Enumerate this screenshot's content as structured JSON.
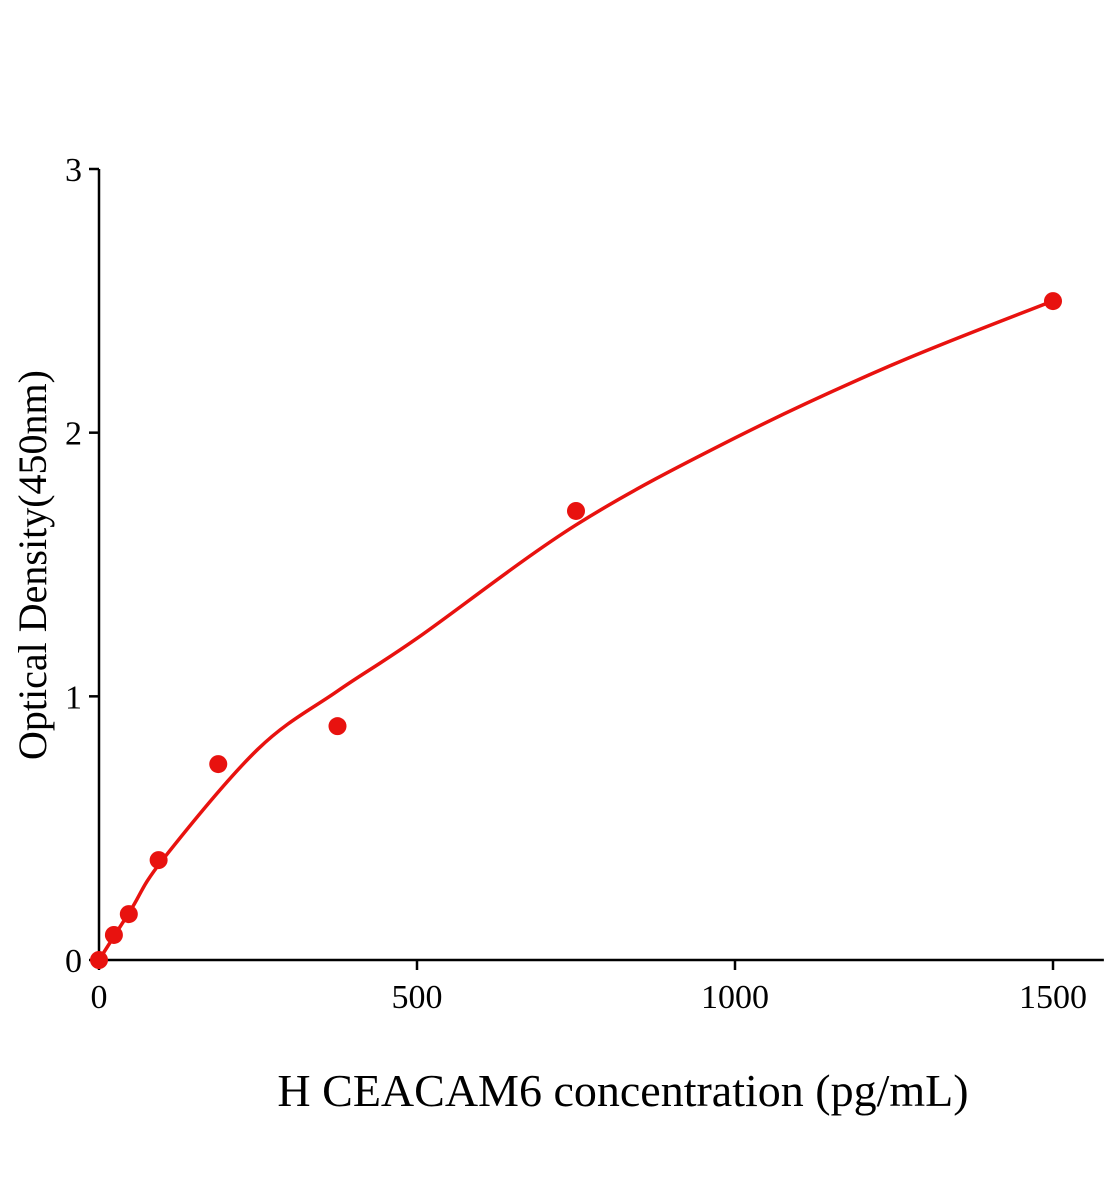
{
  "chart_data": {
    "type": "scatter",
    "title": "",
    "xlabel": "H CEACAM6 concentration (pg/mL)",
    "ylabel": "Optical Density(450nm)",
    "xlim": [
      0,
      1580
    ],
    "ylim": [
      0,
      3
    ],
    "xticks": [
      0,
      500,
      1000,
      1500
    ],
    "xtick_labels": [
      "0",
      "500",
      "1000",
      "1500"
    ],
    "yticks": [
      0,
      1,
      2,
      3
    ],
    "ytick_labels": [
      "0",
      "1",
      "2",
      "3"
    ],
    "grid": false,
    "legend": "none",
    "color": "#e8120f",
    "points": [
      {
        "x": 0,
        "y": 0.0
      },
      {
        "x": 23.44,
        "y": 0.095
      },
      {
        "x": 46.88,
        "y": 0.174
      },
      {
        "x": 93.75,
        "y": 0.379
      },
      {
        "x": 187.5,
        "y": 0.743
      },
      {
        "x": 375,
        "y": 0.887
      },
      {
        "x": 750,
        "y": 1.703
      },
      {
        "x": 1500,
        "y": 2.499
      }
    ],
    "fit_curve": [
      {
        "x": 0,
        "y": 0.0
      },
      {
        "x": 50,
        "y": 0.19
      },
      {
        "x": 100,
        "y": 0.38
      },
      {
        "x": 250,
        "y": 0.8
      },
      {
        "x": 375,
        "y": 1.02
      },
      {
        "x": 500,
        "y": 1.22
      },
      {
        "x": 750,
        "y": 1.65
      },
      {
        "x": 1000,
        "y": 1.98
      },
      {
        "x": 1250,
        "y": 2.26
      },
      {
        "x": 1500,
        "y": 2.5
      }
    ]
  }
}
